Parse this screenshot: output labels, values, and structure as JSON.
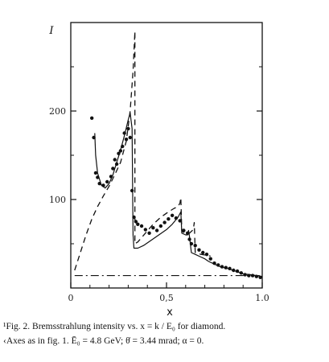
{
  "chart_data": {
    "type": "scatter",
    "title": "",
    "xlabel": "x",
    "ylabel": "I",
    "xlim": [
      0,
      1.0
    ],
    "ylim": [
      0,
      300
    ],
    "x_ticks": [
      {
        "value": 0,
        "label": "0"
      },
      {
        "value": 0.5,
        "label": "0,5"
      },
      {
        "value": 1.0,
        "label": "1.0"
      }
    ],
    "y_ticks": [
      {
        "value": 100,
        "label": "100"
      },
      {
        "value": 200,
        "label": "200"
      }
    ],
    "grid": false,
    "series": [
      {
        "style": "points",
        "points": [
          [
            0.11,
            192
          ],
          [
            0.12,
            170
          ],
          [
            0.13,
            130
          ],
          [
            0.14,
            125
          ],
          [
            0.15,
            118
          ],
          [
            0.17,
            116
          ],
          [
            0.19,
            120
          ],
          [
            0.21,
            126
          ],
          [
            0.22,
            135
          ],
          [
            0.23,
            145
          ],
          [
            0.24,
            140
          ],
          [
            0.25,
            152
          ],
          [
            0.26,
            155
          ],
          [
            0.27,
            160
          ],
          [
            0.28,
            175
          ],
          [
            0.29,
            168
          ],
          [
            0.3,
            180
          ],
          [
            0.31,
            170
          ],
          [
            0.32,
            110
          ],
          [
            0.33,
            80
          ],
          [
            0.34,
            75
          ],
          [
            0.35,
            72
          ],
          [
            0.37,
            70
          ],
          [
            0.39,
            66
          ],
          [
            0.41,
            62
          ],
          [
            0.43,
            68
          ],
          [
            0.45,
            65
          ],
          [
            0.47,
            70
          ],
          [
            0.49,
            74
          ],
          [
            0.51,
            78
          ],
          [
            0.53,
            82
          ],
          [
            0.55,
            79
          ],
          [
            0.57,
            76
          ],
          [
            0.59,
            65
          ],
          [
            0.61,
            62
          ],
          [
            0.62,
            55
          ],
          [
            0.63,
            50
          ],
          [
            0.65,
            48
          ],
          [
            0.67,
            43
          ],
          [
            0.69,
            40
          ],
          [
            0.71,
            38
          ],
          [
            0.73,
            33
          ],
          [
            0.75,
            28
          ],
          [
            0.77,
            26
          ],
          [
            0.79,
            24
          ],
          [
            0.81,
            23
          ],
          [
            0.83,
            22
          ],
          [
            0.85,
            20
          ],
          [
            0.87,
            19
          ],
          [
            0.89,
            17
          ],
          [
            0.91,
            15
          ],
          [
            0.93,
            14
          ],
          [
            0.95,
            14
          ],
          [
            0.97,
            13
          ],
          [
            0.99,
            12
          ]
        ]
      },
      {
        "style": "solid",
        "points": [
          [
            0.125,
            175
          ],
          [
            0.13,
            150
          ],
          [
            0.14,
            130
          ],
          [
            0.16,
            116
          ],
          [
            0.18,
            113
          ],
          [
            0.2,
            118
          ],
          [
            0.22,
            128
          ],
          [
            0.24,
            142
          ],
          [
            0.26,
            156
          ],
          [
            0.28,
            172
          ],
          [
            0.3,
            190
          ],
          [
            0.31,
            198
          ],
          [
            0.32,
            180
          ],
          [
            0.325,
            60
          ],
          [
            0.33,
            45
          ],
          [
            0.35,
            45
          ],
          [
            0.38,
            48
          ],
          [
            0.42,
            54
          ],
          [
            0.46,
            60
          ],
          [
            0.5,
            66
          ],
          [
            0.53,
            72
          ],
          [
            0.56,
            80
          ],
          [
            0.575,
            86
          ],
          [
            0.58,
            62
          ],
          [
            0.6,
            60
          ],
          [
            0.61,
            60
          ],
          [
            0.615,
            65
          ],
          [
            0.62,
            58
          ],
          [
            0.63,
            40
          ],
          [
            0.65,
            38
          ],
          [
            0.68,
            35
          ],
          [
            0.7,
            33
          ],
          [
            0.72,
            30
          ],
          [
            0.75,
            27
          ],
          [
            0.78,
            24
          ],
          [
            0.82,
            22
          ],
          [
            0.86,
            19
          ],
          [
            0.9,
            16
          ],
          [
            0.94,
            15
          ],
          [
            0.97,
            14
          ],
          [
            1.0,
            13
          ]
        ]
      },
      {
        "style": "dashed",
        "points": [
          [
            0.02,
            20
          ],
          [
            0.05,
            40
          ],
          [
            0.08,
            60
          ],
          [
            0.11,
            78
          ],
          [
            0.14,
            92
          ],
          [
            0.17,
            104
          ],
          [
            0.2,
            115
          ],
          [
            0.23,
            128
          ],
          [
            0.26,
            142
          ],
          [
            0.29,
            166
          ],
          [
            0.31,
            200
          ],
          [
            0.325,
            245
          ],
          [
            0.335,
            290
          ],
          [
            0.335,
            50
          ],
          [
            0.35,
            52
          ],
          [
            0.39,
            62
          ],
          [
            0.43,
            72
          ],
          [
            0.47,
            80
          ],
          [
            0.51,
            86
          ],
          [
            0.54,
            90
          ],
          [
            0.56,
            92
          ],
          [
            0.57,
            96
          ],
          [
            0.575,
            102
          ],
          [
            0.58,
            64
          ],
          [
            0.6,
            62
          ],
          [
            0.62,
            62
          ],
          [
            0.64,
            66
          ],
          [
            0.645,
            74
          ],
          [
            0.65,
            40
          ],
          [
            0.68,
            38
          ],
          [
            0.71,
            37
          ],
          [
            0.73,
            36
          ]
        ]
      },
      {
        "style": "dashdot",
        "points": [
          [
            0.02,
            14
          ],
          [
            1.0,
            14
          ]
        ]
      }
    ]
  },
  "caption": {
    "line1": "¹Fig. 2.  Bremsstrahlung intensity vs.  x = k / E₀  for diamond.",
    "line2": "‹Axes as in fig. 1. Ē₀ = 4.8 GeV; θ̇ = 3.44 mrad; α = 0."
  }
}
